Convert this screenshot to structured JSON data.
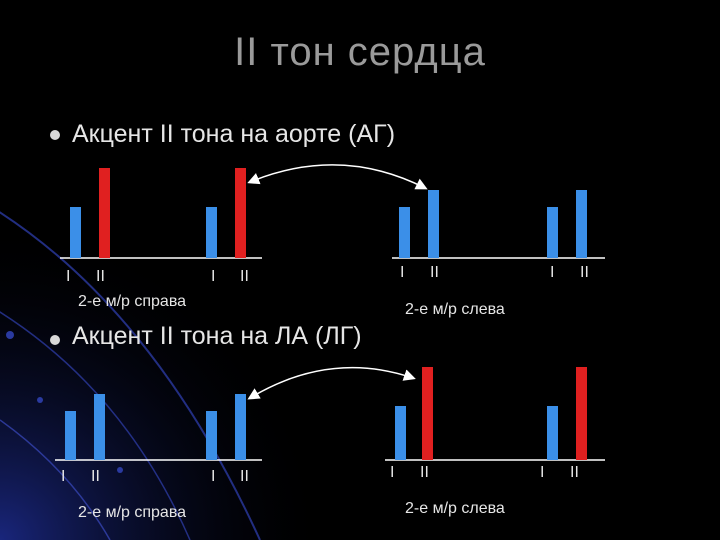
{
  "slide": {
    "title": "II тон сердца",
    "section1": {
      "heading": "Акцент II тона на аорте  (АГ)",
      "right_caption": "2-е м/р справа",
      "left_caption": "2-е м/р слева"
    },
    "section2": {
      "heading": "Акцент II тона на ЛА (ЛГ)",
      "right_caption": "2-е м/р справа",
      "left_caption": "2-е м/р слева"
    },
    "tone_labels": {
      "first": "I",
      "second": "II"
    }
  },
  "colors": {
    "background": "#000000",
    "first_tone_bar": "#3b8fe8",
    "accent_bar": "#e02020",
    "axis": "#ffffff",
    "title": "#9a9a9a"
  }
}
